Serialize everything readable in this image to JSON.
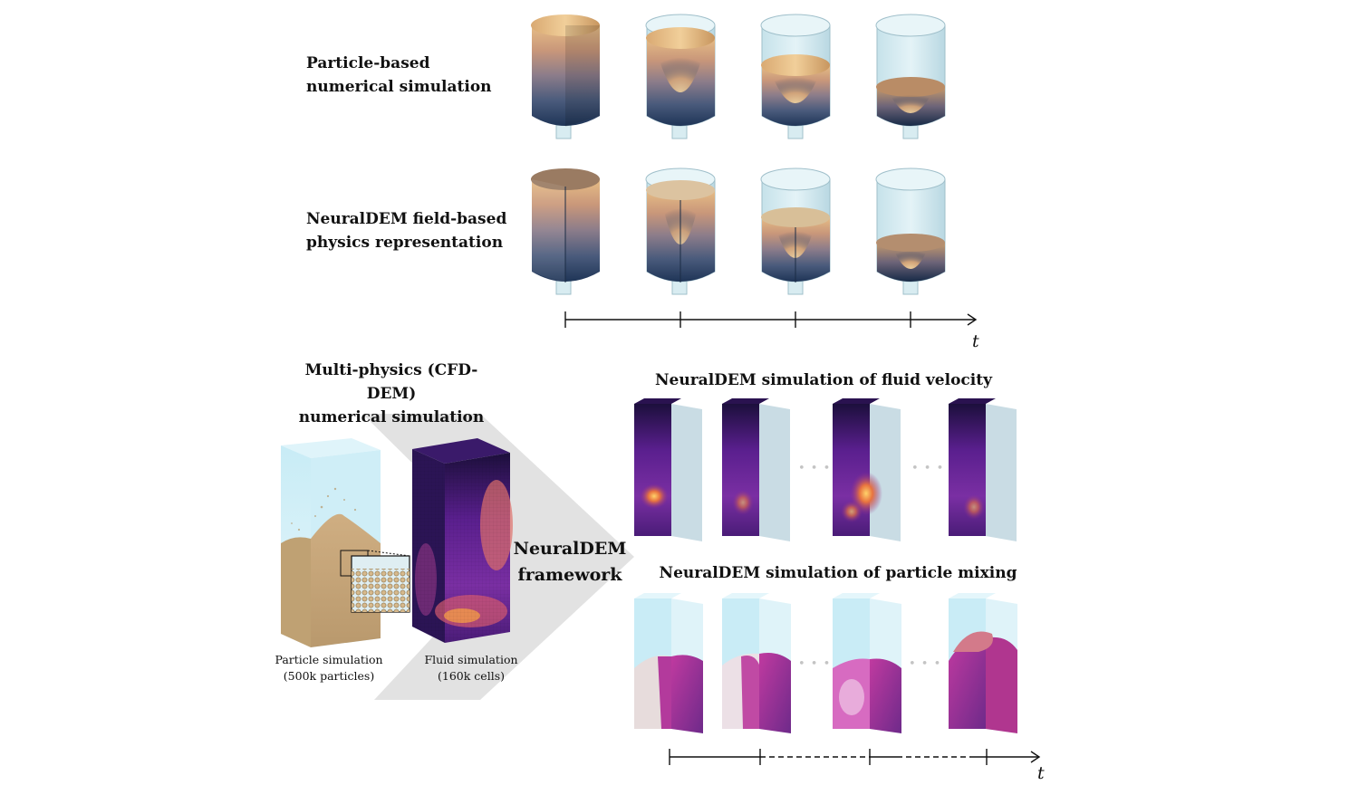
{
  "top": {
    "row1_label_line1": "Particle-based",
    "row1_label_line2": "numerical simulation",
    "row2_label_line1": "NeuralDEM field-based",
    "row2_label_line2": "physics representation",
    "time_label": "t",
    "frames": 4,
    "fill_levels": [
      1.0,
      0.85,
      0.55,
      0.3
    ]
  },
  "bottom_left": {
    "title_line1": "Multi-physics (CFD-DEM)",
    "title_line2": "numerical simulation",
    "particle_caption_line1": "Particle simulation",
    "particle_caption_line2": "(500k particles)",
    "fluid_caption_line1": "Fluid simulation",
    "fluid_caption_line2": "(160k cells)",
    "framework_line1": "NeuralDEM",
    "framework_line2": "framework"
  },
  "bottom_right": {
    "velocity_title": "NeuralDEM simulation of fluid velocity",
    "mixing_title": "NeuralDEM simulation of particle mixing",
    "ellipsis": "• • •",
    "time_label": "t"
  },
  "colors": {
    "sand": "#e8c089",
    "navy": "#233a5e",
    "glass": "#cfe9f3",
    "plasma_dark": "#2a1250",
    "plasma_mid": "#7d2fa6",
    "plasma_hot": "#f3a23a",
    "arrow_bg": "#e2e2e2"
  }
}
